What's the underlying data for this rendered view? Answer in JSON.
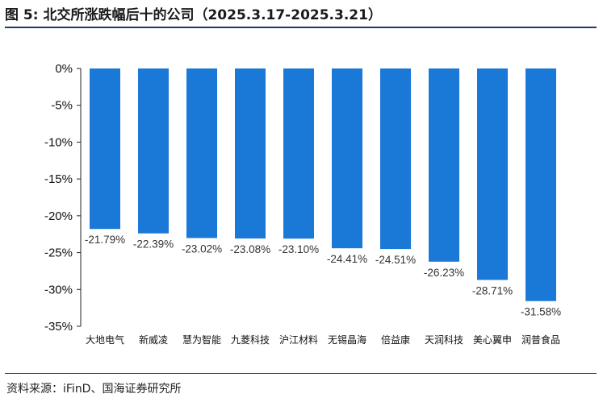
{
  "title": "图 5:  北交所涨跌幅后十的公司（2025.3.17-2025.3.21）",
  "source": "资料来源：iFinD、国海证券研究所",
  "chart_data": {
    "type": "bar",
    "categories": [
      "大地电气",
      "新威凌",
      "慧为智能",
      "九菱科技",
      "沪江材料",
      "无锡晶海",
      "倍益康",
      "天润科技",
      "美心翼申",
      "润普食品"
    ],
    "values": [
      -21.79,
      -22.39,
      -23.02,
      -23.08,
      -23.1,
      -24.41,
      -24.51,
      -26.23,
      -28.71,
      -31.58
    ],
    "data_labels": [
      "-21.79%",
      "-22.39%",
      "-23.02%",
      "-23.08%",
      "-23.10%",
      "-24.41%",
      "-24.51%",
      "-26.23%",
      "-28.71%",
      "-31.58%"
    ],
    "yticks": [
      "0%",
      "-5%",
      "-10%",
      "-15%",
      "-20%",
      "-25%",
      "-30%",
      "-35%"
    ],
    "ylim": [
      -35,
      0
    ],
    "xlabel": "",
    "ylabel": "",
    "bar_color": "#1a78d6",
    "grid": false,
    "legend": "none"
  }
}
